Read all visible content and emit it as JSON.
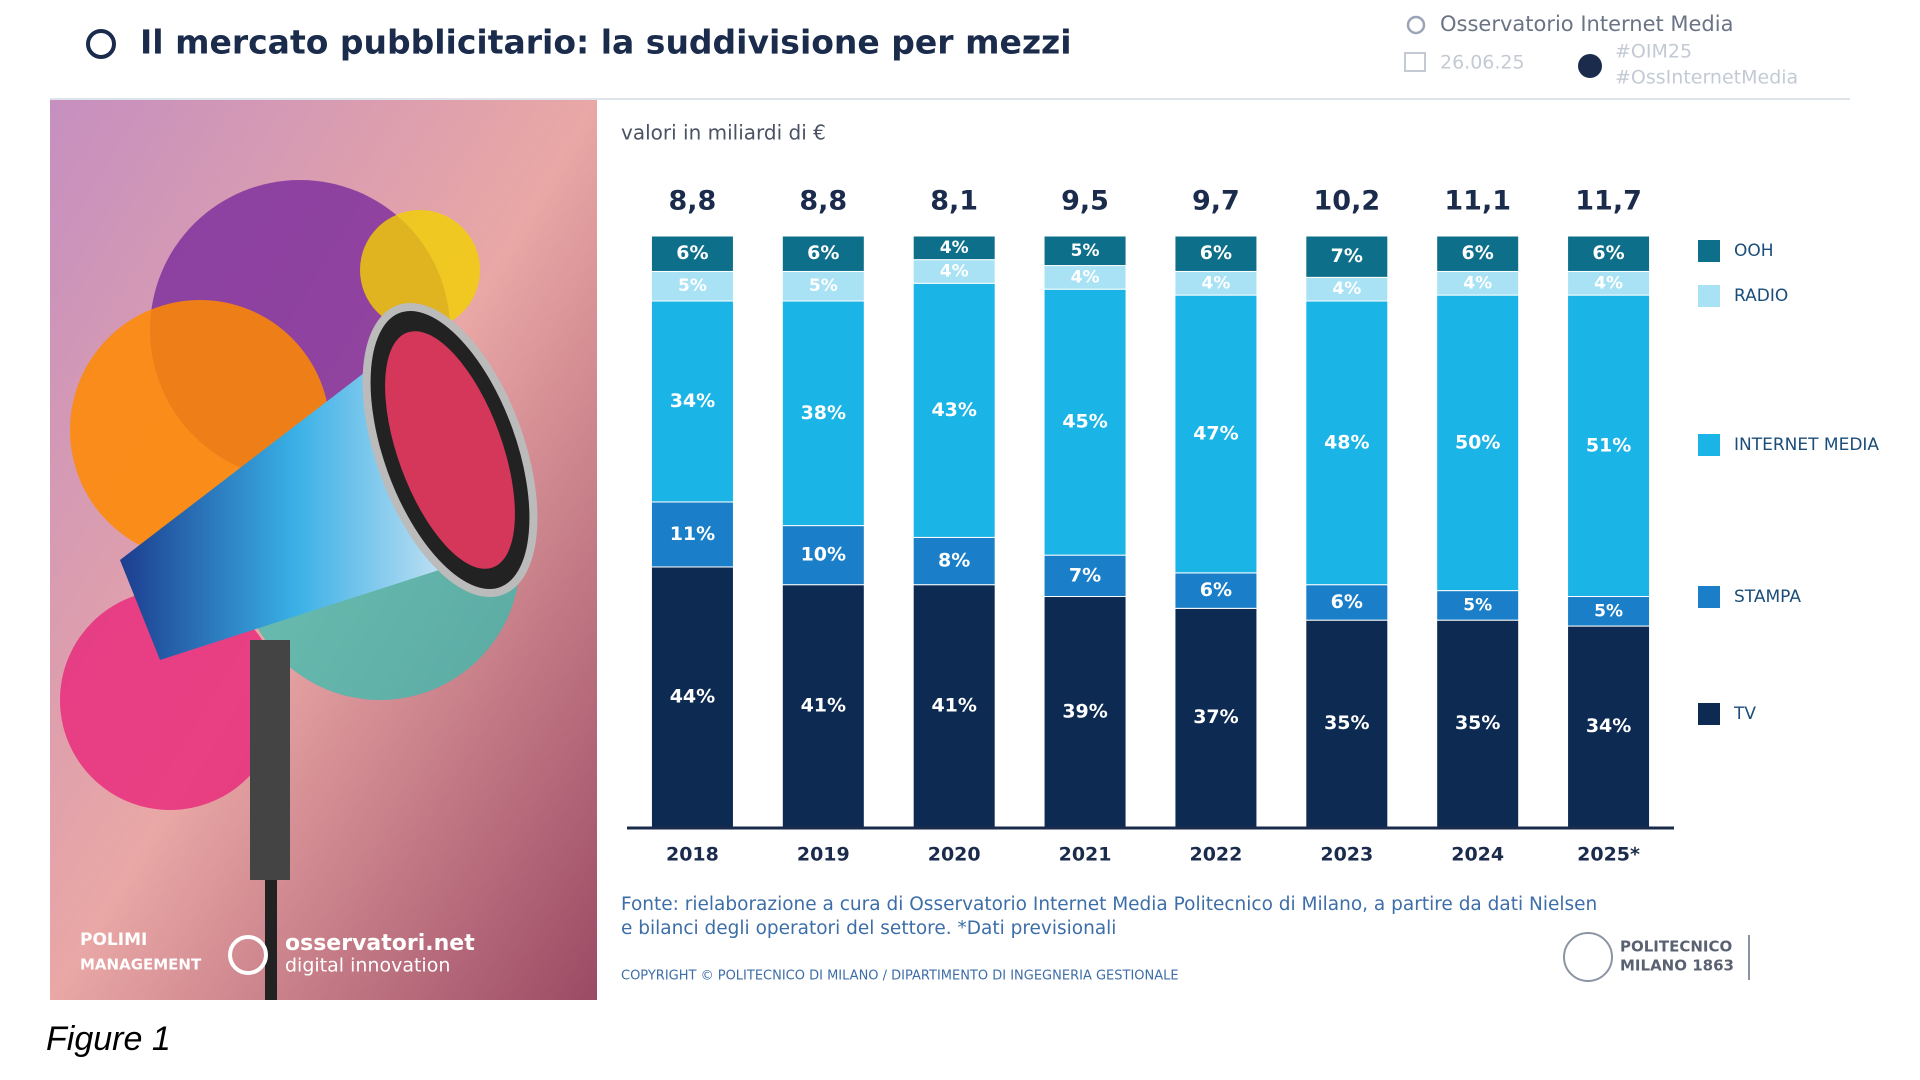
{
  "header": {
    "title": "Il mercato pubblicitario: la suddivisione per mezzi",
    "brand": "Osservatorio Internet Media",
    "date": "26.06.25",
    "hashtags": [
      "#OIM25",
      "#OssInternetMedia"
    ]
  },
  "image_texts": [
    "POLIMI",
    "MANAGEMENT",
    "osservatori.net",
    "digital innovation"
  ],
  "chart_data": {
    "type": "stacked_bar",
    "subtitle": "valori in miliardi di €",
    "categories": [
      "2018",
      "2019",
      "2020",
      "2021",
      "2022",
      "2023",
      "2024",
      "2025*"
    ],
    "ylim": [
      0,
      100
    ],
    "totals": {
      "values": [
        8.8,
        8.8,
        8.1,
        9.5,
        9.7,
        10.2,
        11.1,
        11.7
      ],
      "value_labels": [
        "8,8",
        "8,8",
        "8,1",
        "9,5",
        "9,7",
        "10,2",
        "11,1",
        "11,7"
      ]
    },
    "series": [
      {
        "name": "TV",
        "color": "#0d2a52",
        "values": [
          44,
          41,
          41,
          39,
          37,
          35,
          35,
          34
        ],
        "value_labels": [
          "44%",
          "41%",
          "41%",
          "39%",
          "37%",
          "35%",
          "35%",
          "34%"
        ]
      },
      {
        "name": "STAMPA",
        "color": "#1a7fc8",
        "values": [
          11,
          10,
          8,
          7,
          6,
          6,
          5,
          5
        ],
        "value_labels": [
          "11%",
          "10%",
          "8%",
          "7%",
          "6%",
          "6%",
          "5%",
          "5%"
        ]
      },
      {
        "name": "INTERNET MEDIA",
        "color": "#1bb4e6",
        "values": [
          34,
          38,
          43,
          45,
          47,
          48,
          50,
          51
        ],
        "value_labels": [
          "34%",
          "38%",
          "43%",
          "45%",
          "47%",
          "48%",
          "50%",
          "51%"
        ]
      },
      {
        "name": "RADIO",
        "color": "#a8e2f4",
        "values": [
          5,
          5,
          4,
          4,
          4,
          4,
          4,
          4
        ],
        "value_labels": [
          "5%",
          "5%",
          "4%",
          "4%",
          "4%",
          "4%",
          "4%",
          "4%"
        ]
      },
      {
        "name": "OOH",
        "color": "#0e6f8a",
        "values": [
          6,
          6,
          4,
          5,
          6,
          7,
          6,
          6
        ],
        "value_labels": [
          "6%",
          "6%",
          "4%",
          "5%",
          "6%",
          "7%",
          "6%",
          "6%"
        ]
      }
    ],
    "legend": "right",
    "source": [
      "Fonte: rielaborazione a cura di Osservatorio Internet Media Politecnico di Milano, a partire da dati Nielsen",
      "e bilanci degli operatori del settore. *Dati previsionali"
    ],
    "copyright": "COPYRIGHT © POLITECNICO DI MILANO / DIPARTIMENTO DI INGEGNERIA GESTIONALE"
  },
  "footer_logo": [
    "POLITECNICO",
    "MILANO 1863"
  ],
  "caption": "Figure 1"
}
